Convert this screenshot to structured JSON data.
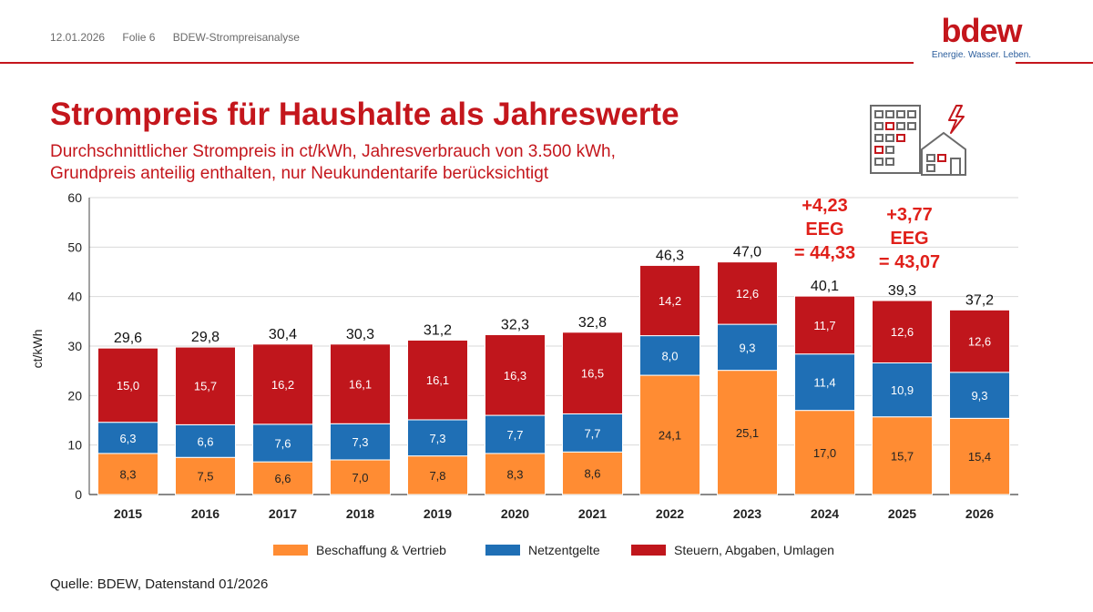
{
  "header": {
    "date": "12.01.2026",
    "slide": "Folie 6",
    "section": "BDEW-Strompreisanalyse"
  },
  "logo": {
    "word": "bdew",
    "tagline": "Energie. Wasser. Leben."
  },
  "title": "Strompreis für Haushalte als Jahreswerte",
  "subtitle_line1": "Durchschnittlicher Strompreis in ct/kWh, Jahresverbrauch von 3.500 kWh,",
  "subtitle_line2": "Grundpreis anteilig enthalten, nur Neukundentarife berücksichtigt",
  "source": "Quelle: BDEW, Datenstand 01/2026",
  "icons": {
    "building": "apartment-building-icon",
    "house": "house-icon",
    "lightning": "lightning-icon"
  },
  "colors": {
    "brand": "#c4161c",
    "orange": "#ff8c33",
    "blue": "#1f6fb5",
    "red": "#c0161c"
  },
  "chart_data": {
    "type": "bar",
    "stacked": true,
    "ylabel": "ct/kWh",
    "ylim": [
      0,
      60
    ],
    "yticks": [
      "0",
      "10",
      "20",
      "30",
      "40",
      "50",
      "60"
    ],
    "grid": true,
    "legend_position": "bottom",
    "categories": [
      "2015",
      "2016",
      "2017",
      "2018",
      "2019",
      "2020",
      "2021",
      "2022",
      "2023",
      "2024",
      "2025",
      "2026"
    ],
    "series": [
      {
        "name": "Beschaffung & Vertrieb",
        "color": "#ff8c33",
        "values": [
          8.3,
          7.5,
          6.6,
          7.0,
          7.8,
          8.3,
          8.6,
          24.1,
          25.1,
          17.0,
          15.7,
          15.4
        ],
        "labels": [
          "8,3",
          "7,5",
          "6,6",
          "7,0",
          "7,8",
          "8,3",
          "8,6",
          "24,1",
          "25,1",
          "17,0",
          "15,7",
          "15,4"
        ]
      },
      {
        "name": "Netzentgelte",
        "color": "#1f6fb5",
        "values": [
          6.3,
          6.6,
          7.6,
          7.3,
          7.3,
          7.7,
          7.7,
          8.0,
          9.3,
          11.4,
          10.9,
          9.3
        ],
        "labels": [
          "6,3",
          "6,6",
          "7,6",
          "7,3",
          "7,3",
          "7,7",
          "7,7",
          "8,0",
          "9,3",
          "11,4",
          "10,9",
          "9,3"
        ]
      },
      {
        "name": "Steuern, Abgaben, Umlagen",
        "color": "#c0161c",
        "values": [
          15.0,
          15.7,
          16.2,
          16.1,
          16.1,
          16.3,
          16.5,
          14.2,
          12.6,
          11.7,
          12.6,
          12.6
        ],
        "labels": [
          "15,0",
          "15,7",
          "16,2",
          "16,1",
          "16,1",
          "16,3",
          "16,5",
          "14,2",
          "12,6",
          "11,7",
          "12,6",
          "12,6"
        ]
      }
    ],
    "totals": [
      29.6,
      29.8,
      30.4,
      30.3,
      31.2,
      32.3,
      32.8,
      46.3,
      47.0,
      40.1,
      39.3,
      37.2
    ],
    "total_labels": [
      "29,6",
      "29,8",
      "30,4",
      "30,3",
      "31,2",
      "32,3",
      "32,8",
      "46,3",
      "47,0",
      "40,1",
      "39,3",
      "37,2"
    ],
    "annotations": [
      {
        "category": "2024",
        "lines": [
          "+4,23",
          "EEG",
          "= 44,33"
        ]
      },
      {
        "category": "2025",
        "lines": [
          "+3,77",
          "EEG",
          "= 43,07"
        ]
      }
    ]
  }
}
